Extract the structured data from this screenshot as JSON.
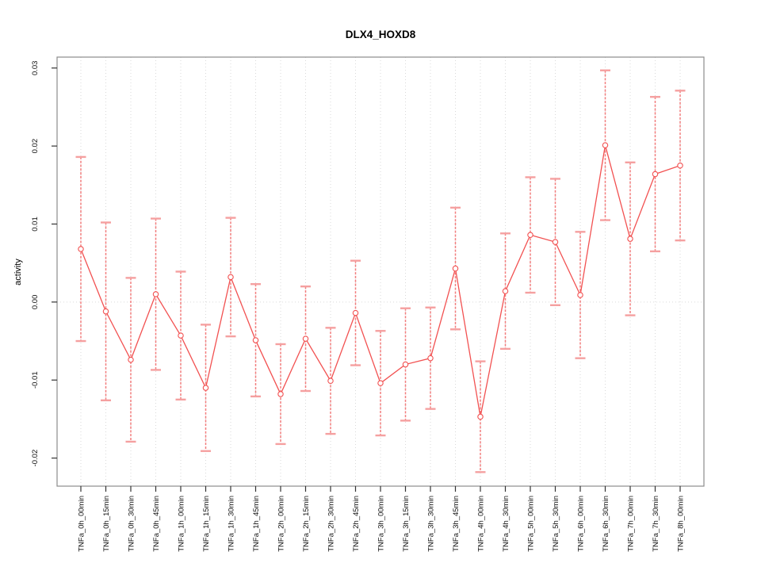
{
  "chart_data": {
    "type": "line",
    "title": "DLX4_HOXD8",
    "xlabel": "",
    "ylabel": "activity",
    "legend": "none",
    "grid": "vertical dotted gridline at every category; horizontal dotted gridline at y=0",
    "marker": "open-circle",
    "error_bars": true,
    "categories": [
      "TNFa_0h_00min",
      "TNFa_0h_15min",
      "TNFa_0h_30min",
      "TNFa_0h_45min",
      "TNFa_1h_00min",
      "TNFa_1h_15min",
      "TNFa_1h_30min",
      "TNFa_1h_45min",
      "TNFa_2h_00min",
      "TNFa_2h_15min",
      "TNFa_2h_30min",
      "TNFa_2h_45min",
      "TNFa_3h_00min",
      "TNFa_3h_15min",
      "TNFa_3h_30min",
      "TNFa_3h_45min",
      "TNFa_4h_00min",
      "TNFa_4h_30min",
      "TNFa_5h_00min",
      "TNFa_5h_30min",
      "TNFa_6h_00min",
      "TNFa_6h_30min",
      "TNFa_7h_00min",
      "TNFa_7h_30min",
      "TNFa_8h_00min"
    ],
    "values": [
      0.0068,
      -0.0012,
      -0.0074,
      0.001,
      -0.0043,
      -0.011,
      0.0032,
      -0.0049,
      -0.0118,
      -0.0047,
      -0.0101,
      -0.0014,
      -0.0104,
      -0.008,
      -0.0072,
      0.0043,
      -0.0147,
      0.0014,
      0.0086,
      0.0077,
      0.0009,
      0.0201,
      0.0081,
      0.0164,
      0.0175
    ],
    "errors": [
      0.0118,
      0.0114,
      0.0105,
      0.0097,
      0.0082,
      0.0081,
      0.0076,
      0.0072,
      0.0064,
      0.0067,
      0.0068,
      0.0067,
      0.0067,
      0.0072,
      0.0065,
      0.0078,
      0.0071,
      0.0074,
      0.0074,
      0.0081,
      0.0081,
      0.0096,
      0.0098,
      0.0099,
      0.0096
    ],
    "ylim": [
      -0.0236,
      0.0314
    ],
    "yticks": {
      "values": [
        0.03,
        0.02,
        0.01,
        0.0,
        -0.01,
        -0.02
      ],
      "labels": [
        "0.03",
        "0.02",
        "0.01",
        "0.00",
        "-0.01",
        "-0.02"
      ]
    },
    "colors": {
      "line": "#f25151",
      "error_stem": "#f27e7e",
      "error_cap": "#f5a0a0",
      "grid": "#d9d9d9",
      "box": "#8c8c8c",
      "tick": "#333333",
      "background": "#ffffff"
    }
  }
}
